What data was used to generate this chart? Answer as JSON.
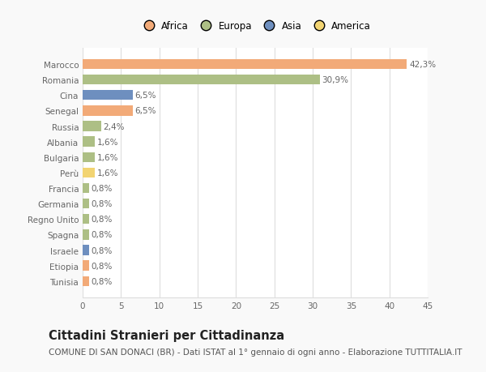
{
  "countries": [
    "Marocco",
    "Romania",
    "Cina",
    "Senegal",
    "Russia",
    "Albania",
    "Bulgaria",
    "Perù",
    "Francia",
    "Germania",
    "Regno Unito",
    "Spagna",
    "Israele",
    "Etiopia",
    "Tunisia"
  ],
  "values": [
    42.3,
    30.9,
    6.5,
    6.5,
    2.4,
    1.6,
    1.6,
    1.6,
    0.8,
    0.8,
    0.8,
    0.8,
    0.8,
    0.8,
    0.8
  ],
  "labels": [
    "42,3%",
    "30,9%",
    "6,5%",
    "6,5%",
    "2,4%",
    "1,6%",
    "1,6%",
    "1,6%",
    "0,8%",
    "0,8%",
    "0,8%",
    "0,8%",
    "0,8%",
    "0,8%",
    "0,8%"
  ],
  "continents": [
    "Africa",
    "Europa",
    "Asia",
    "Africa",
    "Europa",
    "Europa",
    "Europa",
    "America",
    "Europa",
    "Europa",
    "Europa",
    "Europa",
    "Asia",
    "Africa",
    "Africa"
  ],
  "colors": {
    "Africa": "#F2AA78",
    "Europa": "#ADBF85",
    "Asia": "#6E8FBF",
    "America": "#F2D472"
  },
  "xlim": [
    0,
    45
  ],
  "xticks": [
    0,
    5,
    10,
    15,
    20,
    25,
    30,
    35,
    40,
    45
  ],
  "title": "Cittadini Stranieri per Cittadinanza",
  "subtitle": "COMUNE DI SAN DONACI (BR) - Dati ISTAT al 1° gennaio di ogni anno - Elaborazione TUTTITALIA.IT",
  "bg_color": "#f9f9f9",
  "plot_bg_color": "#ffffff",
  "grid_color": "#dddddd",
  "text_color": "#666666",
  "label_fontsize": 7.5,
  "tick_label_fontsize": 7.5,
  "title_fontsize": 10.5,
  "subtitle_fontsize": 7.5,
  "legend_order": [
    "Africa",
    "Europa",
    "Asia",
    "America"
  ]
}
